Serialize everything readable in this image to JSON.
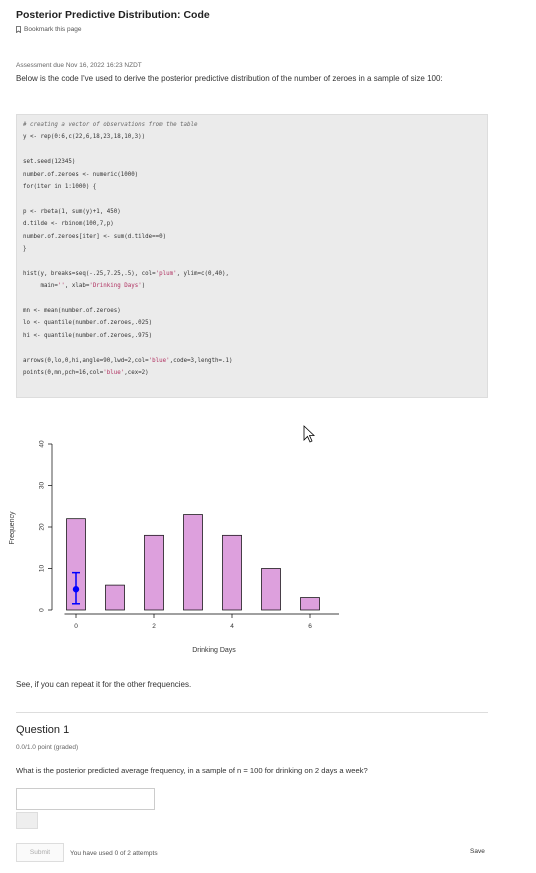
{
  "header": {
    "title": "Posterior Predictive Distribution: Code",
    "bookmark_label": "Bookmark this page"
  },
  "content": {
    "due": "Assessment due Nov 16, 2022 16:23 NZDT",
    "intro": "Below is the code I've used to derive the posterior predictive distribution of the number of zeroes in a sample of size 100:",
    "code_lines": [
      "# creating a vector of observations from the table",
      "y <- rep(0:6,c(22,6,18,23,18,10,3))",
      "",
      "set.seed(12345)",
      "number.of.zeroes <- numeric(1000)",
      "for(iter in 1:1000) {",
      "",
      "p <- rbeta(1, sum(y)+1, 450)",
      "d.tilde <- rbinom(100,7,p)",
      "number.of.zeroes[iter] <- sum(d.tilde==0)",
      "}",
      "",
      "hist(y, breaks=seq(-.25,7.25,.5), col='plum', ylim=c(0,40),",
      "     main='', xlab='Drinking Days')",
      "",
      "mn <- mean(number.of.zeroes)",
      "lo <- quantile(number.of.zeroes,.025)",
      "hi <- quantile(number.of.zeroes,.975)",
      "",
      "arrows(0,lo,0,hi,angle=90,lwd=2,col='blue',code=3,length=.1)",
      "points(0,mn,pch=16,col='blue',cex=2)"
    ],
    "see": "See, if you can repeat it for the other frequencies."
  },
  "chart_data": {
    "type": "bar",
    "categories": [
      0,
      1,
      2,
      3,
      4,
      5,
      6
    ],
    "values": [
      22,
      6,
      18,
      23,
      18,
      10,
      3
    ],
    "xlabel": "Drinking Days",
    "ylabel": "Frequency",
    "ylim": [
      0,
      40
    ],
    "yticks": [
      "0",
      "10",
      "20",
      "30",
      "40"
    ],
    "xticks": [
      "0",
      "2",
      "4",
      "6"
    ],
    "bar_color": "#dda0dd",
    "interval": {
      "x": 0,
      "lo": 1.5,
      "hi": 9,
      "mean": 5,
      "color": "#0000ff"
    }
  },
  "question": {
    "title": "Question 1",
    "points": "0.0/1.0 point (graded)",
    "text": "What is the posterior predicted average frequency, in a sample of n = 100 for drinking on 2 days a week?",
    "input_value": "",
    "submit_label": "Submit",
    "attempts": "You have used 0 of 2 attempts",
    "save_label": "Save"
  }
}
